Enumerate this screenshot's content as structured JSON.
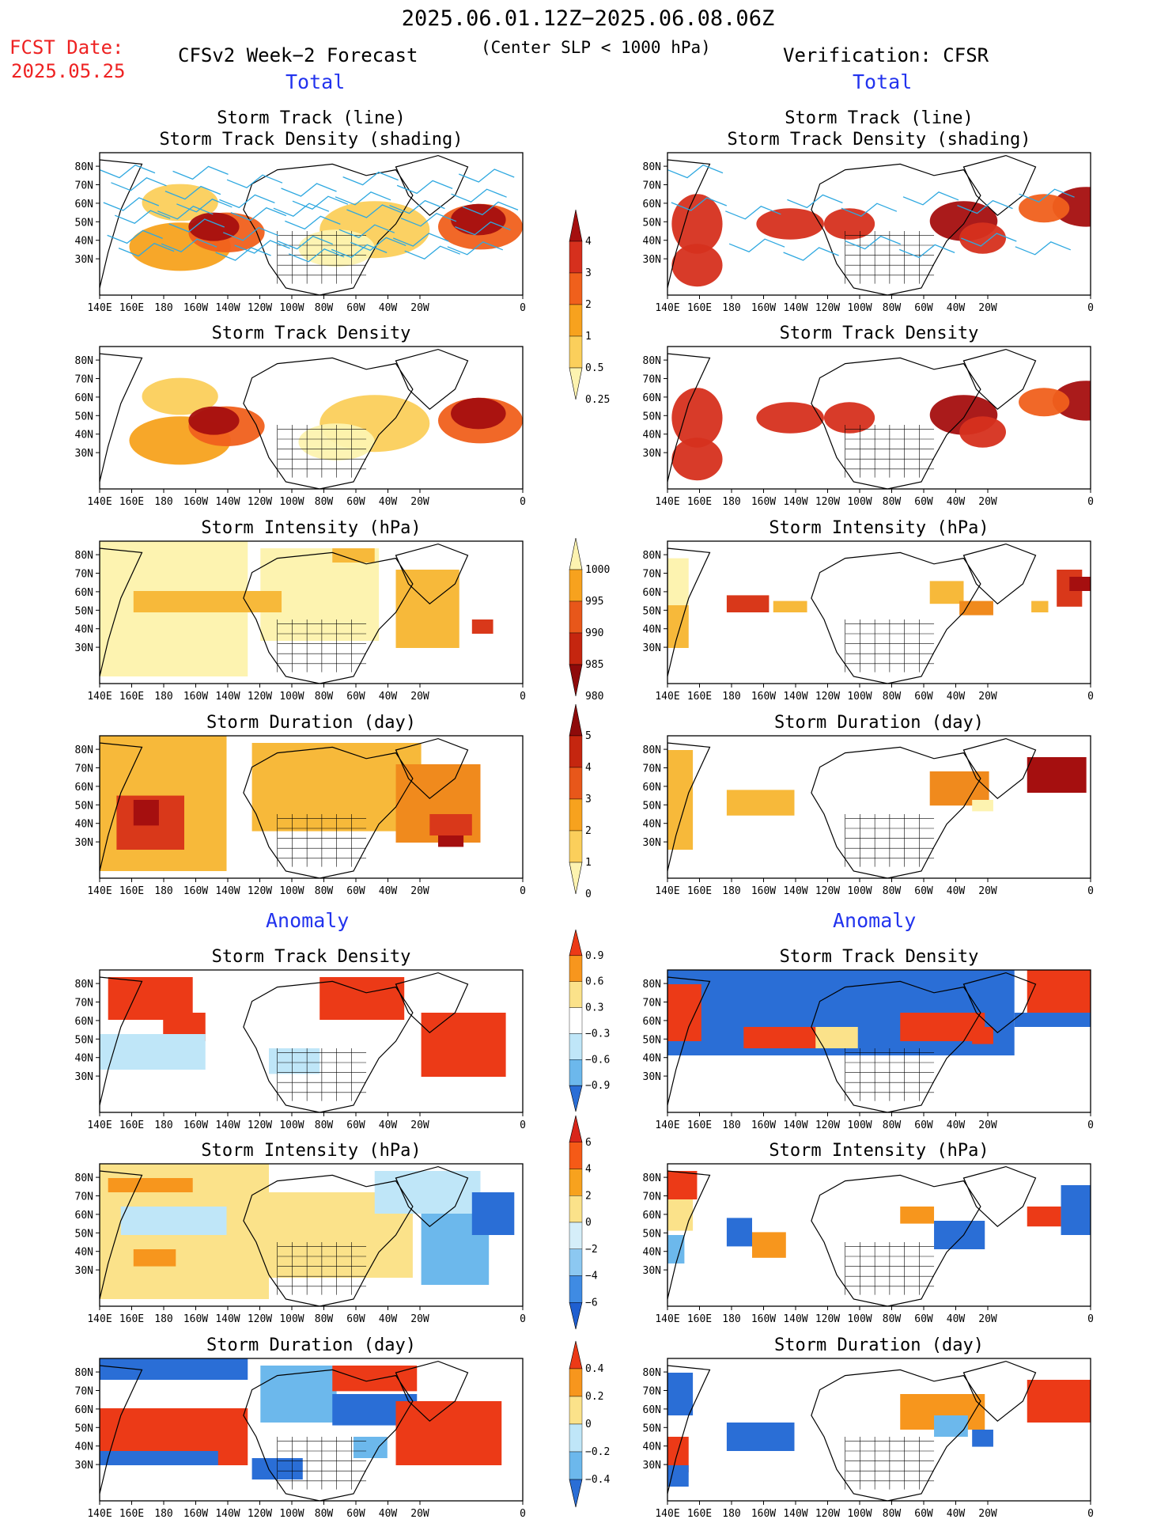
{
  "header": {
    "period": "2025.06.01.12Z−2025.06.08.06Z",
    "criterion": "(Center SLP < 1000 hPa)",
    "fcst_label": "FCST Date:",
    "fcst_date": "2025.05.25",
    "left_title": "CFSv2 Week−2 Forecast",
    "right_title": "Verification: CFSR",
    "total_label": "Total",
    "anomaly_label": "Anomaly"
  },
  "panel_titles": {
    "track_line": "Storm Track (line)",
    "track_density_shading": "Storm Track Density (shading)",
    "track_density": "Storm Track Density",
    "intensity": "Storm Intensity (hPa)",
    "duration": "Storm Duration (day)"
  },
  "axes": {
    "lat_labels": [
      "80N",
      "70N",
      "60N",
      "50N",
      "40N",
      "30N"
    ],
    "lon_labels": [
      "140E",
      "160E",
      "180",
      "160W",
      "140W",
      "120W",
      "100W",
      "80W",
      "60W",
      "40W",
      "20W",
      "0"
    ]
  },
  "colorbars": [
    {
      "id": "density_total",
      "labels": [
        "4",
        "3",
        "2",
        "1",
        "0.5",
        "0.25"
      ],
      "colors": [
        "#a50f0f",
        "#d6301d",
        "#f0601c",
        "#f7a21e",
        "#fbcf5b",
        "#fdf3b0"
      ]
    },
    {
      "id": "intensity_total",
      "labels": [
        "1000",
        "995",
        "990",
        "985",
        "980"
      ],
      "colors": [
        "#fdf3b0",
        "#f7a21e",
        "#e8571a",
        "#c5260f",
        "#8e0a0a"
      ]
    },
    {
      "id": "duration_total",
      "labels": [
        "5",
        "4",
        "3",
        "2",
        "1",
        "0"
      ],
      "colors": [
        "#8e0a0a",
        "#c5260f",
        "#e8571a",
        "#f7a21e",
        "#fbcf5b",
        "#fdf3b0"
      ]
    },
    {
      "id": "density_anom",
      "labels": [
        "0.9",
        "0.6",
        "0.3",
        "−0.3",
        "−0.6",
        "−0.9"
      ],
      "colors": [
        "#ec3a17",
        "#f7961d",
        "#fbe28a",
        "#ffffff",
        "#bfe6f8",
        "#6cb8ec",
        "#2a6ed6"
      ]
    },
    {
      "id": "intensity_anom",
      "labels": [
        "6",
        "4",
        "2",
        "0",
        "−2",
        "−4",
        "−6"
      ],
      "colors": [
        "#d9261a",
        "#f55a17",
        "#f7a21e",
        "#fbe28a",
        "#d5eef9",
        "#8cc8f1",
        "#3f8be3",
        "#1f5fd0"
      ]
    },
    {
      "id": "duration_anom",
      "labels": [
        "0.4",
        "0.2",
        "0",
        "−0.2",
        "−0.4"
      ],
      "colors": [
        "#ec3a17",
        "#f7961d",
        "#fbe28a",
        "#bfe6f8",
        "#6cb8ec",
        "#2a6ed6"
      ]
    }
  ],
  "colors": {
    "title_red": "#ee2222",
    "label_blue": "#2233ee",
    "track_line": "#2ea8e0",
    "coast": "#000000"
  }
}
